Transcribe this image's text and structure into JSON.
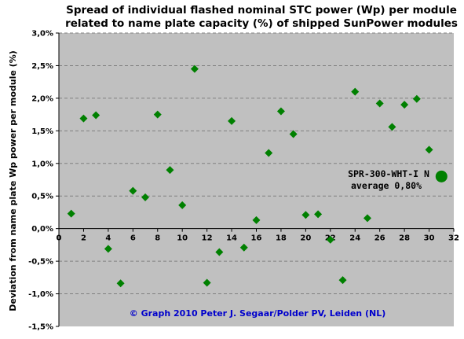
{
  "chart_data": {
    "type": "scatter",
    "title_lines": [
      "Spread of individual flashed nominal STC power (Wp) per module",
      "related to name plate capacity (%) of shipped SunPower modules"
    ],
    "xlabel": "",
    "ylabel": "Deviation from name plate Wp power per module (%)",
    "xlim": [
      0,
      32
    ],
    "ylim": [
      -1.5,
      3.0
    ],
    "x_ticks": [
      0,
      2,
      4,
      6,
      8,
      10,
      12,
      14,
      16,
      18,
      20,
      22,
      24,
      26,
      28,
      30,
      32
    ],
    "y_ticks": [
      -1.5,
      -1.0,
      -0.5,
      0.0,
      0.5,
      1.0,
      1.5,
      2.0,
      2.5,
      3.0
    ],
    "y_tick_labels": [
      "-1,5%",
      "-1,0%",
      "-0,5%",
      "0,0%",
      "0,5%",
      "1,0%",
      "1,5%",
      "2,0%",
      "2,5%",
      "3,0%"
    ],
    "grid": "horizontal dashed",
    "series": [
      {
        "marker": "diamond",
        "color": "#008000",
        "points": [
          {
            "x": 1,
            "y": 0.23
          },
          {
            "x": 2,
            "y": 1.69
          },
          {
            "x": 3,
            "y": 1.74
          },
          {
            "x": 4,
            "y": -0.31
          },
          {
            "x": 5,
            "y": -0.84
          },
          {
            "x": 6,
            "y": 0.58
          },
          {
            "x": 7,
            "y": 0.48
          },
          {
            "x": 8,
            "y": 1.75
          },
          {
            "x": 9,
            "y": 0.9
          },
          {
            "x": 10,
            "y": 0.36
          },
          {
            "x": 11,
            "y": 2.45
          },
          {
            "x": 12,
            "y": -0.83
          },
          {
            "x": 13,
            "y": -0.36
          },
          {
            "x": 14,
            "y": 1.65
          },
          {
            "x": 15,
            "y": -0.29
          },
          {
            "x": 16,
            "y": 0.13
          },
          {
            "x": 17,
            "y": 1.16
          },
          {
            "x": 18,
            "y": 1.8
          },
          {
            "x": 19,
            "y": 1.45
          },
          {
            "x": 20,
            "y": 0.21
          },
          {
            "x": 21,
            "y": 0.22
          },
          {
            "x": 22,
            "y": -0.17
          },
          {
            "x": 23,
            "y": -0.79
          },
          {
            "x": 24,
            "y": 2.1
          },
          {
            "x": 25,
            "y": 0.16
          },
          {
            "x": 26,
            "y": 1.92
          },
          {
            "x": 27,
            "y": 1.56
          },
          {
            "x": 28,
            "y": 1.9
          },
          {
            "x": 29,
            "y": 1.99
          },
          {
            "x": 30,
            "y": 1.21
          }
        ]
      },
      {
        "marker": "circle",
        "color": "#008000",
        "points": [
          {
            "x": 31,
            "y": 0.8
          }
        ]
      }
    ],
    "annotation": {
      "lines": [
        "SPR-300-WHT-I N",
        "average 0,80%"
      ]
    },
    "credit": "© Graph 2010 Peter J. Segaar/Polder PV, Leiden (NL)",
    "colors": {
      "plot_background": "#c0c0c0",
      "gridline": "#808080",
      "marker": "#008000",
      "credit_text": "#0000cc"
    }
  }
}
